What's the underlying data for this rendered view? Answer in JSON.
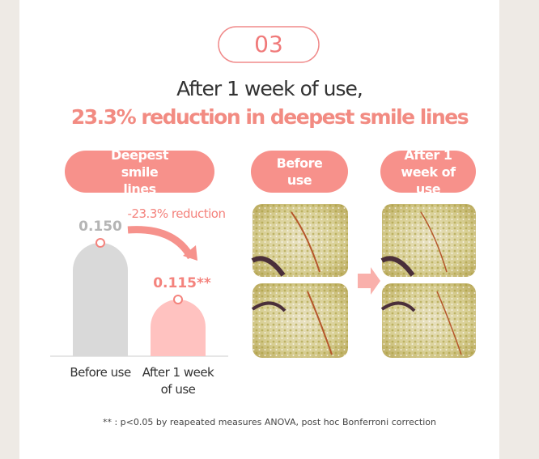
{
  "step": "03",
  "headline": {
    "line1": "After 1 week of use,",
    "line2": "23.3% reduction in deepest smile lines"
  },
  "photos": {
    "before_label": "Before use",
    "after_label": "After 1 week of use"
  },
  "footnote": "** : p<0.05 by reapeated measures ANOVA, post hoc Bonferroni correction",
  "chart_data": {
    "type": "bar",
    "title": "Deepest smile lines",
    "categories": [
      "Before use",
      "After 1 week of use"
    ],
    "values": [
      0.15,
      0.115
    ],
    "value_labels": [
      "0.150",
      "0.115**"
    ],
    "colors": [
      "#d9d9d9",
      "#ffc2c0"
    ],
    "label_colors": [
      "#b5b5b5",
      "#f4837d"
    ],
    "ylim": [
      0.08,
      0.16
    ],
    "annotation": "-23.3% reduction"
  }
}
